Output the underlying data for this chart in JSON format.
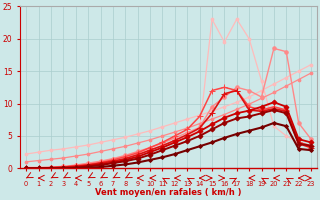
{
  "bg_color": "#cde8e8",
  "grid_color": "#aacece",
  "xlabel": "Vent moyen/en rafales ( km/h )",
  "xlabel_color": "#cc0000",
  "tick_color": "#cc0000",
  "xlim": [
    -0.5,
    23.5
  ],
  "ylim": [
    0,
    25
  ],
  "yticks": [
    0,
    5,
    10,
    15,
    20,
    25
  ],
  "xticks": [
    0,
    1,
    2,
    3,
    4,
    5,
    6,
    7,
    8,
    9,
    10,
    11,
    12,
    13,
    14,
    15,
    16,
    17,
    18,
    19,
    20,
    21,
    22,
    23
  ],
  "lines": [
    {
      "x": [
        0,
        1,
        2,
        3,
        4,
        5,
        6,
        7,
        8,
        9,
        10,
        11,
        12,
        13,
        14,
        15,
        16,
        17,
        18,
        19,
        20,
        21,
        22,
        23
      ],
      "y": [
        0.2,
        0.2,
        0.2,
        0.3,
        0.5,
        0.7,
        1.0,
        1.3,
        1.8,
        2.3,
        3.0,
        3.5,
        4.2,
        5.0,
        5.8,
        23.0,
        19.5,
        23.0,
        20.0,
        13.5,
        6.5,
        5.0,
        4.0,
        3.0
      ],
      "color": "#ffbbbb",
      "lw": 0.9,
      "marker": "o",
      "ms": 2.0
    },
    {
      "x": [
        0,
        1,
        2,
        3,
        4,
        5,
        6,
        7,
        8,
        9,
        10,
        11,
        12,
        13,
        14,
        15,
        16,
        17,
        18,
        19,
        20,
        21,
        22,
        23
      ],
      "y": [
        2.2,
        2.5,
        2.8,
        3.0,
        3.3,
        3.6,
        4.0,
        4.4,
        4.8,
        5.3,
        5.8,
        6.4,
        7.0,
        7.6,
        8.2,
        8.8,
        9.5,
        10.2,
        11.0,
        12.0,
        13.0,
        14.0,
        15.0,
        16.0
      ],
      "color": "#ffbbbb",
      "lw": 0.9,
      "marker": "o",
      "ms": 2.0
    },
    {
      "x": [
        0,
        1,
        2,
        3,
        4,
        5,
        6,
        7,
        8,
        9,
        10,
        11,
        12,
        13,
        14,
        15,
        16,
        17,
        18,
        19,
        20,
        21,
        22,
        23
      ],
      "y": [
        0.1,
        0.1,
        0.2,
        0.3,
        0.5,
        0.8,
        1.1,
        1.5,
        2.0,
        2.6,
        3.2,
        3.9,
        4.7,
        5.5,
        6.3,
        9.5,
        11.0,
        12.5,
        12.0,
        11.0,
        18.5,
        18.0,
        7.0,
        4.5
      ],
      "color": "#ff8888",
      "lw": 1.0,
      "marker": "o",
      "ms": 2.5
    },
    {
      "x": [
        0,
        1,
        2,
        3,
        4,
        5,
        6,
        7,
        8,
        9,
        10,
        11,
        12,
        13,
        14,
        15,
        16,
        17,
        18,
        19,
        20,
        21,
        22,
        23
      ],
      "y": [
        1.0,
        1.2,
        1.4,
        1.6,
        1.9,
        2.2,
        2.6,
        3.0,
        3.4,
        3.9,
        4.4,
        5.0,
        5.6,
        6.2,
        6.9,
        7.6,
        8.3,
        9.1,
        9.9,
        10.8,
        11.7,
        12.7,
        13.7,
        14.7
      ],
      "color": "#ff8888",
      "lw": 0.9,
      "marker": "o",
      "ms": 2.0
    },
    {
      "x": [
        0,
        1,
        2,
        3,
        4,
        5,
        6,
        7,
        8,
        9,
        10,
        11,
        12,
        13,
        14,
        15,
        16,
        17,
        18,
        19,
        20,
        21,
        22,
        23
      ],
      "y": [
        0,
        0,
        0.1,
        0.2,
        0.4,
        0.6,
        0.9,
        1.3,
        1.8,
        2.4,
        3.2,
        4.0,
        5.0,
        6.0,
        8.0,
        12.0,
        12.5,
        12.0,
        9.5,
        9.0,
        9.5,
        9.0,
        4.0,
        3.5
      ],
      "color": "#ff4444",
      "lw": 1.1,
      "marker": "+",
      "ms": 4.0
    },
    {
      "x": [
        0,
        1,
        2,
        3,
        4,
        5,
        6,
        7,
        8,
        9,
        10,
        11,
        12,
        13,
        14,
        15,
        16,
        17,
        18,
        19,
        20,
        21,
        22,
        23
      ],
      "y": [
        0,
        0,
        0.1,
        0.2,
        0.3,
        0.5,
        0.8,
        1.1,
        1.5,
        2.1,
        2.8,
        3.5,
        4.3,
        5.2,
        6.2,
        8.5,
        11.5,
        12.0,
        9.0,
        8.8,
        9.2,
        8.8,
        3.8,
        3.2
      ],
      "color": "#dd1111",
      "lw": 1.2,
      "marker": "+",
      "ms": 4.0
    },
    {
      "x": [
        0,
        1,
        2,
        3,
        4,
        5,
        6,
        7,
        8,
        9,
        10,
        11,
        12,
        13,
        14,
        15,
        16,
        17,
        18,
        19,
        20,
        21,
        22,
        23
      ],
      "y": [
        0,
        0,
        0,
        0.1,
        0.2,
        0.4,
        0.6,
        0.9,
        1.3,
        1.8,
        2.5,
        3.2,
        4.0,
        4.8,
        5.7,
        6.8,
        7.8,
        8.5,
        8.9,
        9.5,
        10.2,
        9.5,
        4.5,
        4.0
      ],
      "color": "#cc0000",
      "lw": 1.3,
      "marker": "D",
      "ms": 2.5
    },
    {
      "x": [
        0,
        1,
        2,
        3,
        4,
        5,
        6,
        7,
        8,
        9,
        10,
        11,
        12,
        13,
        14,
        15,
        16,
        17,
        18,
        19,
        20,
        21,
        22,
        23
      ],
      "y": [
        0,
        0,
        0,
        0.0,
        0.1,
        0.3,
        0.5,
        0.8,
        1.1,
        1.5,
        2.1,
        2.8,
        3.5,
        4.2,
        5.0,
        6.0,
        7.0,
        7.7,
        8.0,
        8.5,
        9.0,
        8.5,
        3.8,
        3.5
      ],
      "color": "#990000",
      "lw": 1.4,
      "marker": "D",
      "ms": 2.5
    },
    {
      "x": [
        0,
        1,
        2,
        3,
        4,
        5,
        6,
        7,
        8,
        9,
        10,
        11,
        12,
        13,
        14,
        15,
        16,
        17,
        18,
        19,
        20,
        21,
        22,
        23
      ],
      "y": [
        0,
        0,
        0,
        0,
        0.05,
        0.1,
        0.2,
        0.4,
        0.6,
        0.9,
        1.3,
        1.7,
        2.2,
        2.8,
        3.4,
        4.0,
        4.7,
        5.3,
        5.8,
        6.3,
        7.0,
        6.5,
        3.0,
        2.8
      ],
      "color": "#770000",
      "lw": 1.5,
      "marker": "D",
      "ms": 2.0
    }
  ],
  "wind_arrows": {
    "x": [
      0,
      1,
      2,
      3,
      4,
      5,
      6,
      7,
      8,
      9,
      10,
      11,
      12,
      13,
      14,
      15,
      16,
      17,
      18,
      19,
      20,
      21,
      22,
      23
    ],
    "angles_deg": [
      225,
      270,
      225,
      225,
      270,
      225,
      225,
      225,
      225,
      270,
      270,
      315,
      270,
      315,
      270,
      90,
      90,
      45,
      270,
      315,
      270,
      315,
      270,
      90
    ]
  }
}
